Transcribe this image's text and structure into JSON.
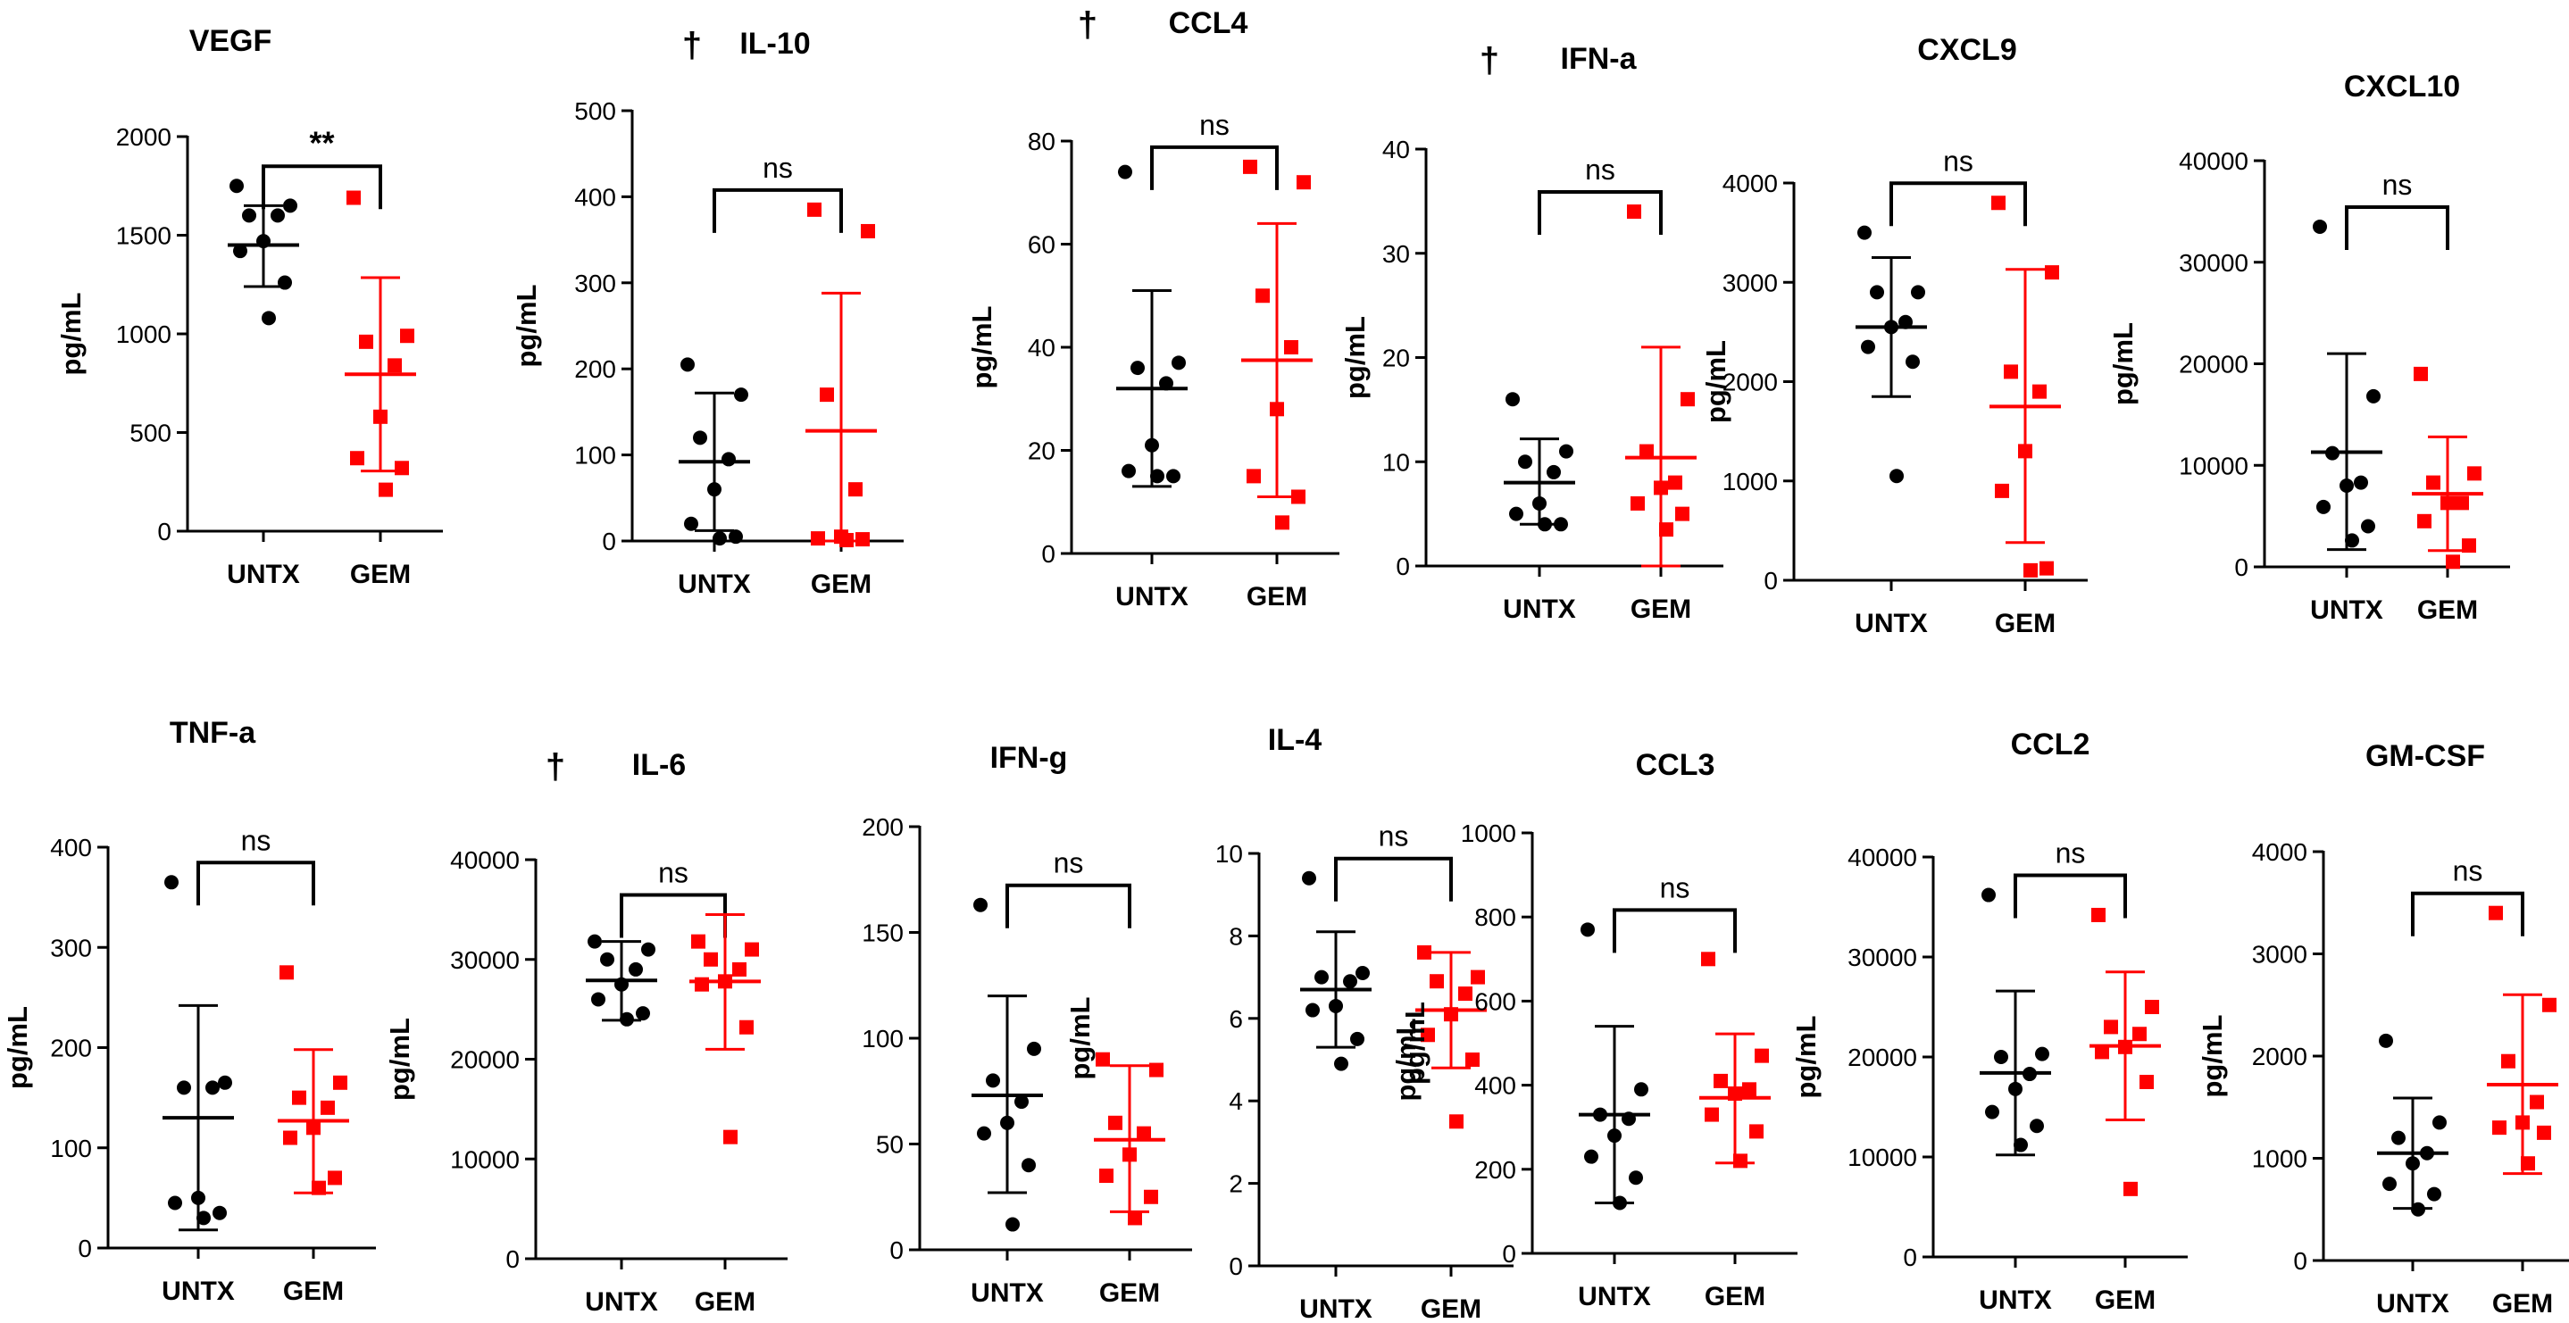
{
  "colors": {
    "untx": "#000000",
    "gem": "#ff0000",
    "axis": "#000000"
  },
  "chart_data": [
    {
      "type": "scatter",
      "title": "VEGF",
      "dagger": "",
      "ylabel": "pg/mL",
      "xlabel": "",
      "categories": [
        "UNTX",
        "GEM"
      ],
      "ylim": [
        0,
        2000
      ],
      "yticks": [
        0,
        500,
        1000,
        1500,
        2000
      ],
      "significance": "**",
      "series": [
        {
          "name": "UNTX",
          "values": [
            1750,
            1650,
            1600,
            1600,
            1470,
            1420,
            1260,
            1080
          ],
          "mean": 1450,
          "sd_low": 1240,
          "sd_high": 1650
        },
        {
          "name": "GEM",
          "values": [
            1690,
            990,
            960,
            840,
            580,
            370,
            320,
            210
          ],
          "mean": 795,
          "sd_low": 305,
          "sd_high": 1285
        }
      ]
    },
    {
      "type": "scatter",
      "title": "IL-10",
      "dagger": "†",
      "ylabel": "pg/mL",
      "xlabel": "",
      "categories": [
        "UNTX",
        "GEM"
      ],
      "ylim": [
        0,
        500
      ],
      "yticks": [
        0,
        100,
        200,
        300,
        400,
        500
      ],
      "significance": "ns",
      "series": [
        {
          "name": "UNTX",
          "values": [
            205,
            170,
            120,
            95,
            60,
            20,
            5,
            3
          ],
          "mean": 92,
          "sd_low": 12,
          "sd_high": 172
        },
        {
          "name": "GEM",
          "values": [
            385,
            360,
            170,
            60,
            5,
            3,
            2,
            1
          ],
          "mean": 128,
          "sd_low": 0,
          "sd_high": 288
        }
      ]
    },
    {
      "type": "scatter",
      "title": "CCL4",
      "dagger": "†",
      "ylabel": "pg/mL",
      "xlabel": "",
      "categories": [
        "UNTX",
        "GEM"
      ],
      "ylim": [
        0,
        80
      ],
      "yticks": [
        0,
        20,
        40,
        60,
        80
      ],
      "significance": "ns",
      "series": [
        {
          "name": "UNTX",
          "values": [
            74,
            37,
            36,
            33,
            21,
            16,
            15,
            15
          ],
          "mean": 32,
          "sd_low": 13,
          "sd_high": 51
        },
        {
          "name": "GEM",
          "values": [
            75,
            72,
            50,
            40,
            28,
            15,
            11,
            6
          ],
          "mean": 37.5,
          "sd_low": 11,
          "sd_high": 64
        }
      ]
    },
    {
      "type": "scatter",
      "title": "IFN-a",
      "dagger": "†",
      "ylabel": "pg/mL",
      "xlabel": "",
      "categories": [
        "UNTX",
        "GEM"
      ],
      "ylim": [
        0,
        40
      ],
      "yticks": [
        0,
        10,
        20,
        30,
        40
      ],
      "significance": "ns",
      "series": [
        {
          "name": "UNTX",
          "values": [
            16,
            11,
            10,
            9,
            6,
            5,
            4,
            4
          ],
          "mean": 8,
          "sd_low": 4,
          "sd_high": 12.2
        },
        {
          "name": "GEM",
          "values": [
            34,
            16,
            11,
            8,
            7.5,
            6,
            5,
            3.5
          ],
          "mean": 10.4,
          "sd_low": 0,
          "sd_high": 21
        }
      ]
    },
    {
      "type": "scatter",
      "title": "CXCL9",
      "dagger": "",
      "ylabel": "pg/mL",
      "xlabel": "",
      "categories": [
        "UNTX",
        "GEM"
      ],
      "ylim": [
        0,
        4000
      ],
      "yticks": [
        0,
        1000,
        2000,
        3000,
        4000
      ],
      "significance": "ns",
      "series": [
        {
          "name": "UNTX",
          "values": [
            3500,
            2900,
            2900,
            2600,
            2550,
            2350,
            2200,
            1050
          ],
          "mean": 2550,
          "sd_low": 1850,
          "sd_high": 3250
        },
        {
          "name": "GEM",
          "values": [
            3800,
            3100,
            2100,
            1900,
            1300,
            900,
            120,
            100
          ],
          "mean": 1750,
          "sd_low": 380,
          "sd_high": 3130
        }
      ]
    },
    {
      "type": "scatter",
      "title": "CXCL10",
      "dagger": "",
      "ylabel": "pg/mL",
      "xlabel": "",
      "categories": [
        "UNTX",
        "GEM"
      ],
      "ylim": [
        0,
        40000
      ],
      "yticks": [
        0,
        10000,
        20000,
        30000,
        40000
      ],
      "significance": "ns",
      "series": [
        {
          "name": "UNTX",
          "values": [
            33500,
            16800,
            11200,
            8300,
            8000,
            5900,
            4000,
            2600
          ],
          "mean": 11300,
          "sd_low": 1700,
          "sd_high": 21000
        },
        {
          "name": "GEM",
          "values": [
            19000,
            9200,
            8300,
            6300,
            6300,
            4500,
            2100,
            500
          ],
          "mean": 7200,
          "sd_low": 1600,
          "sd_high": 12800
        }
      ]
    },
    {
      "type": "scatter",
      "title": "TNF-a",
      "dagger": "",
      "ylabel": "pg/mL",
      "xlabel": "",
      "categories": [
        "UNTX",
        "GEM"
      ],
      "ylim": [
        0,
        400
      ],
      "yticks": [
        0,
        100,
        200,
        300,
        400
      ],
      "significance": "ns",
      "series": [
        {
          "name": "UNTX",
          "values": [
            365,
            165,
            160,
            160,
            50,
            45,
            35,
            30
          ],
          "mean": 130,
          "sd_low": 18,
          "sd_high": 242
        },
        {
          "name": "GEM",
          "values": [
            275,
            165,
            150,
            140,
            120,
            110,
            70,
            60
          ],
          "mean": 127,
          "sd_low": 55,
          "sd_high": 198
        }
      ]
    },
    {
      "type": "scatter",
      "title": "IL-6",
      "dagger": "†",
      "ylabel": "pg/mL",
      "xlabel": "",
      "categories": [
        "UNTX",
        "GEM"
      ],
      "ylim": [
        0,
        40000
      ],
      "yticks": [
        0,
        10000,
        20000,
        30000,
        40000
      ],
      "significance": "ns",
      "series": [
        {
          "name": "UNTX",
          "values": [
            31800,
            31000,
            30000,
            29000,
            27500,
            26000,
            24600,
            24000
          ],
          "mean": 27900,
          "sd_low": 23900,
          "sd_high": 31800
        },
        {
          "name": "GEM",
          "values": [
            31800,
            31000,
            30000,
            29000,
            27800,
            27500,
            23200,
            12200
          ],
          "mean": 27800,
          "sd_low": 21000,
          "sd_high": 34500
        }
      ]
    },
    {
      "type": "scatter",
      "title": "IFN-g",
      "dagger": "",
      "ylabel": "pg/mL",
      "xlabel": "",
      "categories": [
        "UNTX",
        "GEM"
      ],
      "ylim": [
        0,
        200
      ],
      "yticks": [
        0,
        50,
        100,
        150,
        200
      ],
      "significance": "ns",
      "series": [
        {
          "name": "UNTX",
          "values": [
            163,
            95,
            80,
            70,
            60,
            55,
            40,
            12
          ],
          "mean": 73,
          "sd_low": 27,
          "sd_high": 120
        },
        {
          "name": "GEM",
          "values": [
            90,
            85,
            60,
            55,
            45,
            35,
            25,
            15
          ],
          "mean": 52,
          "sd_low": 18,
          "sd_high": 87
        }
      ]
    },
    {
      "type": "scatter",
      "title": "IL-4",
      "dagger": "",
      "ylabel": "pg/mL",
      "xlabel": "",
      "categories": [
        "UNTX",
        "GEM"
      ],
      "ylim": [
        0,
        10
      ],
      "yticks": [
        0,
        2,
        4,
        6,
        8,
        10
      ],
      "significance": "ns",
      "series": [
        {
          "name": "UNTX",
          "values": [
            9.4,
            7.1,
            7.0,
            6.9,
            6.3,
            6.2,
            5.5,
            4.9
          ],
          "mean": 6.7,
          "sd_low": 5.3,
          "sd_high": 8.1
        },
        {
          "name": "GEM",
          "values": [
            7.6,
            7.0,
            6.9,
            6.6,
            6.1,
            5.6,
            5.0,
            3.5
          ],
          "mean": 6.2,
          "sd_low": 4.8,
          "sd_high": 7.6
        }
      ]
    },
    {
      "type": "scatter",
      "title": "CCL3",
      "dagger": "",
      "ylabel": "pg/mL",
      "xlabel": "",
      "categories": [
        "UNTX",
        "GEM"
      ],
      "ylim": [
        0,
        1000
      ],
      "yticks": [
        0,
        200,
        400,
        600,
        800,
        1000
      ],
      "significance": "ns",
      "series": [
        {
          "name": "UNTX",
          "values": [
            770,
            390,
            330,
            320,
            280,
            230,
            180,
            120
          ],
          "mean": 330,
          "sd_low": 120,
          "sd_high": 540
        },
        {
          "name": "GEM",
          "values": [
            700,
            470,
            410,
            390,
            380,
            330,
            290,
            220
          ],
          "mean": 370,
          "sd_low": 215,
          "sd_high": 522
        }
      ]
    },
    {
      "type": "scatter",
      "title": "CCL2",
      "dagger": "",
      "ylabel": "pg/mL",
      "xlabel": "",
      "categories": [
        "UNTX",
        "GEM"
      ],
      "ylim": [
        0,
        40000
      ],
      "yticks": [
        0,
        10000,
        20000,
        30000,
        40000
      ],
      "significance": "ns",
      "series": [
        {
          "name": "UNTX",
          "values": [
            36200,
            20300,
            20000,
            18300,
            16800,
            14500,
            13100,
            11200
          ],
          "mean": 18400,
          "sd_low": 10200,
          "sd_high": 26600
        },
        {
          "name": "GEM",
          "values": [
            34200,
            25000,
            23000,
            22300,
            21000,
            20500,
            17500,
            6800
          ],
          "mean": 21100,
          "sd_low": 13700,
          "sd_high": 28500
        }
      ]
    },
    {
      "type": "scatter",
      "title": "GM-CSF",
      "dagger": "",
      "ylabel": "pg/mL",
      "xlabel": "",
      "categories": [
        "UNTX",
        "GEM"
      ],
      "ylim": [
        0,
        4000
      ],
      "yticks": [
        0,
        1000,
        2000,
        3000,
        4000
      ],
      "significance": "ns",
      "series": [
        {
          "name": "UNTX",
          "values": [
            2150,
            1350,
            1200,
            1050,
            950,
            750,
            650,
            500
          ],
          "mean": 1050,
          "sd_low": 510,
          "sd_high": 1590
        },
        {
          "name": "GEM",
          "values": [
            3400,
            2500,
            1950,
            1550,
            1350,
            1300,
            1250,
            950
          ],
          "mean": 1720,
          "sd_low": 850,
          "sd_high": 2600
        }
      ]
    }
  ]
}
